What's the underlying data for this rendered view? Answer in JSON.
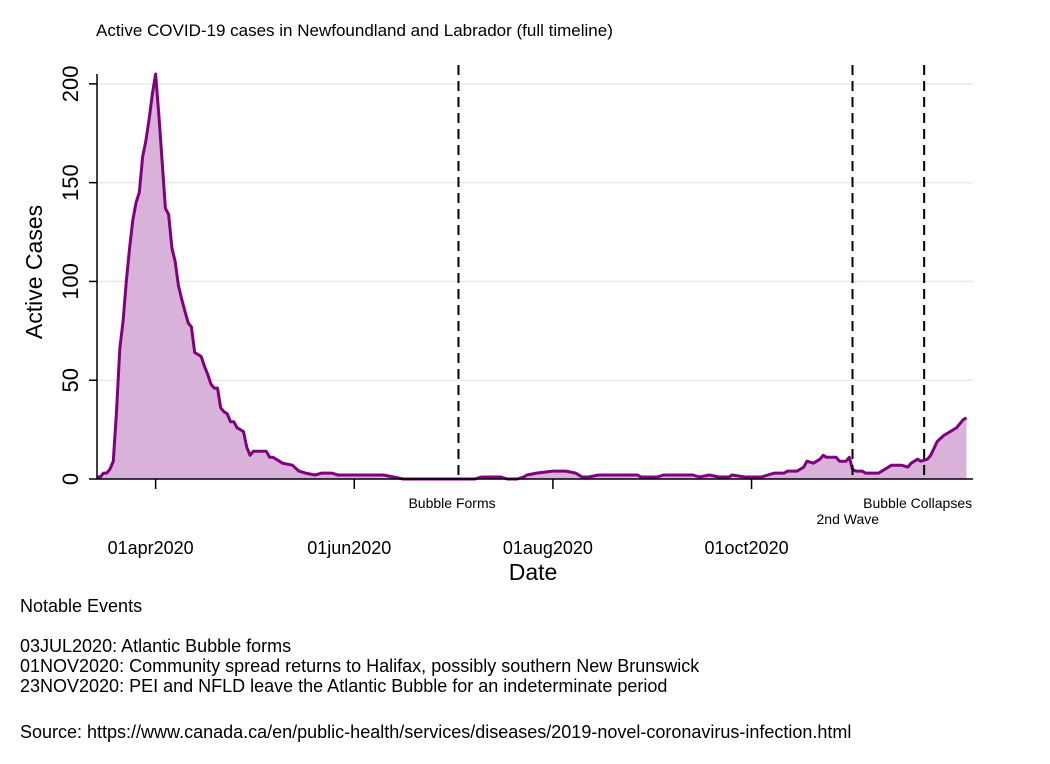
{
  "chart_data": {
    "type": "area",
    "title": "Active COVID-19 cases in Newfoundland and Labrador (full timeline)",
    "xlabel": "Date",
    "ylabel": "Active Cases",
    "x_ticks": [
      "01apr2020",
      "01jun2020",
      "01aug2020",
      "01oct2020"
    ],
    "y_ticks": [
      0,
      50,
      100,
      150,
      200
    ],
    "xlim": [
      "2020-03-14",
      "2020-12-08"
    ],
    "ylim": [
      0,
      205
    ],
    "grid": true,
    "legend": "none",
    "line_color": "#800080",
    "fill_color": "#d8b2d8",
    "event_lines": [
      {
        "date": "2020-07-03",
        "label": "Bubble Forms"
      },
      {
        "date": "2020-11-01",
        "label": "2nd Wave"
      },
      {
        "date": "2020-11-23",
        "label": "Bubble Collapses"
      }
    ],
    "series": [
      {
        "points": [
          [
            "2020-03-14",
            1
          ],
          [
            "2020-03-15",
            1
          ],
          [
            "2020-03-16",
            3
          ],
          [
            "2020-03-17",
            3
          ],
          [
            "2020-03-18",
            5
          ],
          [
            "2020-03-19",
            9
          ],
          [
            "2020-03-20",
            34
          ],
          [
            "2020-03-21",
            66
          ],
          [
            "2020-03-22",
            80
          ],
          [
            "2020-03-23",
            100
          ],
          [
            "2020-03-24",
            117
          ],
          [
            "2020-03-25",
            131
          ],
          [
            "2020-03-26",
            140
          ],
          [
            "2020-03-27",
            145
          ],
          [
            "2020-03-28",
            163
          ],
          [
            "2020-03-29",
            171
          ],
          [
            "2020-03-30",
            182
          ],
          [
            "2020-03-31",
            195
          ],
          [
            "2020-04-01",
            205
          ],
          [
            "2020-04-02",
            184
          ],
          [
            "2020-04-03",
            161
          ],
          [
            "2020-04-04",
            137
          ],
          [
            "2020-04-05",
            134
          ],
          [
            "2020-04-06",
            117
          ],
          [
            "2020-04-07",
            110
          ],
          [
            "2020-04-08",
            98
          ],
          [
            "2020-04-09",
            91
          ],
          [
            "2020-04-10",
            85
          ],
          [
            "2020-04-11",
            79
          ],
          [
            "2020-04-12",
            77
          ],
          [
            "2020-04-13",
            64
          ],
          [
            "2020-04-14",
            63
          ],
          [
            "2020-04-15",
            62
          ],
          [
            "2020-04-16",
            57
          ],
          [
            "2020-04-17",
            53
          ],
          [
            "2020-04-18",
            48
          ],
          [
            "2020-04-19",
            46
          ],
          [
            "2020-04-20",
            46
          ],
          [
            "2020-04-21",
            36
          ],
          [
            "2020-04-22",
            34
          ],
          [
            "2020-04-23",
            33
          ],
          [
            "2020-04-24",
            29
          ],
          [
            "2020-04-25",
            29
          ],
          [
            "2020-04-26",
            26
          ],
          [
            "2020-04-27",
            25
          ],
          [
            "2020-04-28",
            24
          ],
          [
            "2020-04-29",
            16
          ],
          [
            "2020-04-30",
            12
          ],
          [
            "2020-05-01",
            14
          ],
          [
            "2020-05-02",
            14
          ],
          [
            "2020-05-05",
            14
          ],
          [
            "2020-05-06",
            11
          ],
          [
            "2020-05-07",
            11
          ],
          [
            "2020-05-08",
            10
          ],
          [
            "2020-05-10",
            8
          ],
          [
            "2020-05-13",
            7
          ],
          [
            "2020-05-15",
            4
          ],
          [
            "2020-05-17",
            3
          ],
          [
            "2020-05-20",
            2
          ],
          [
            "2020-05-22",
            3
          ],
          [
            "2020-05-25",
            3
          ],
          [
            "2020-05-27",
            2
          ],
          [
            "2020-06-10",
            2
          ],
          [
            "2020-06-13",
            1
          ],
          [
            "2020-06-16",
            0
          ],
          [
            "2020-07-08",
            0
          ],
          [
            "2020-07-10",
            1
          ],
          [
            "2020-07-16",
            1
          ],
          [
            "2020-07-18",
            0
          ],
          [
            "2020-07-21",
            0
          ],
          [
            "2020-07-23",
            1
          ],
          [
            "2020-07-24",
            2
          ],
          [
            "2020-07-27",
            3
          ],
          [
            "2020-08-01",
            4
          ],
          [
            "2020-08-05",
            4
          ],
          [
            "2020-08-08",
            3
          ],
          [
            "2020-08-10",
            1
          ],
          [
            "2020-08-12",
            1
          ],
          [
            "2020-08-15",
            2
          ],
          [
            "2020-08-27",
            2
          ],
          [
            "2020-08-28",
            1
          ],
          [
            "2020-09-02",
            1
          ],
          [
            "2020-09-04",
            2
          ],
          [
            "2020-09-10",
            2
          ],
          [
            "2020-09-13",
            2
          ],
          [
            "2020-09-15",
            1
          ],
          [
            "2020-09-18",
            2
          ],
          [
            "2020-09-21",
            1
          ],
          [
            "2020-09-24",
            1
          ],
          [
            "2020-09-25",
            2
          ],
          [
            "2020-09-29",
            1
          ],
          [
            "2020-10-04",
            1
          ],
          [
            "2020-10-06",
            2
          ],
          [
            "2020-10-08",
            3
          ],
          [
            "2020-10-11",
            3
          ],
          [
            "2020-10-12",
            4
          ],
          [
            "2020-10-15",
            4
          ],
          [
            "2020-10-17",
            6
          ],
          [
            "2020-10-18",
            9
          ],
          [
            "2020-10-20",
            8
          ],
          [
            "2020-10-22",
            10
          ],
          [
            "2020-10-23",
            12
          ],
          [
            "2020-10-24",
            11
          ],
          [
            "2020-10-27",
            11
          ],
          [
            "2020-10-28",
            9
          ],
          [
            "2020-10-30",
            9
          ],
          [
            "2020-10-31",
            11
          ],
          [
            "2020-11-01",
            5
          ],
          [
            "2020-11-02",
            4
          ],
          [
            "2020-11-04",
            4
          ],
          [
            "2020-11-05",
            3
          ],
          [
            "2020-11-09",
            3
          ],
          [
            "2020-11-10",
            4
          ],
          [
            "2020-11-11",
            5
          ],
          [
            "2020-11-13",
            7
          ],
          [
            "2020-11-16",
            7
          ],
          [
            "2020-11-18",
            6
          ],
          [
            "2020-11-19",
            8
          ],
          [
            "2020-11-21",
            10
          ],
          [
            "2020-11-22",
            9
          ],
          [
            "2020-11-24",
            10
          ],
          [
            "2020-11-25",
            12
          ],
          [
            "2020-11-27",
            19
          ],
          [
            "2020-11-29",
            22
          ],
          [
            "2020-12-01",
            24
          ],
          [
            "2020-12-03",
            26
          ],
          [
            "2020-12-05",
            30
          ],
          [
            "2020-12-06",
            31
          ]
        ]
      }
    ]
  },
  "notes": {
    "heading": "Notable Events",
    "events": [
      "03JUL2020: Atlantic Bubble forms",
      "01NOV2020: Community spread returns to Halifax, possibly southern New Brunswick",
      "23NOV2020: PEI and NFLD leave the Atlantic Bubble for an indeterminate period"
    ],
    "source": "Source: https://www.canada.ca/en/public-health/services/diseases/2019-novel-coronavirus-infection.html"
  }
}
